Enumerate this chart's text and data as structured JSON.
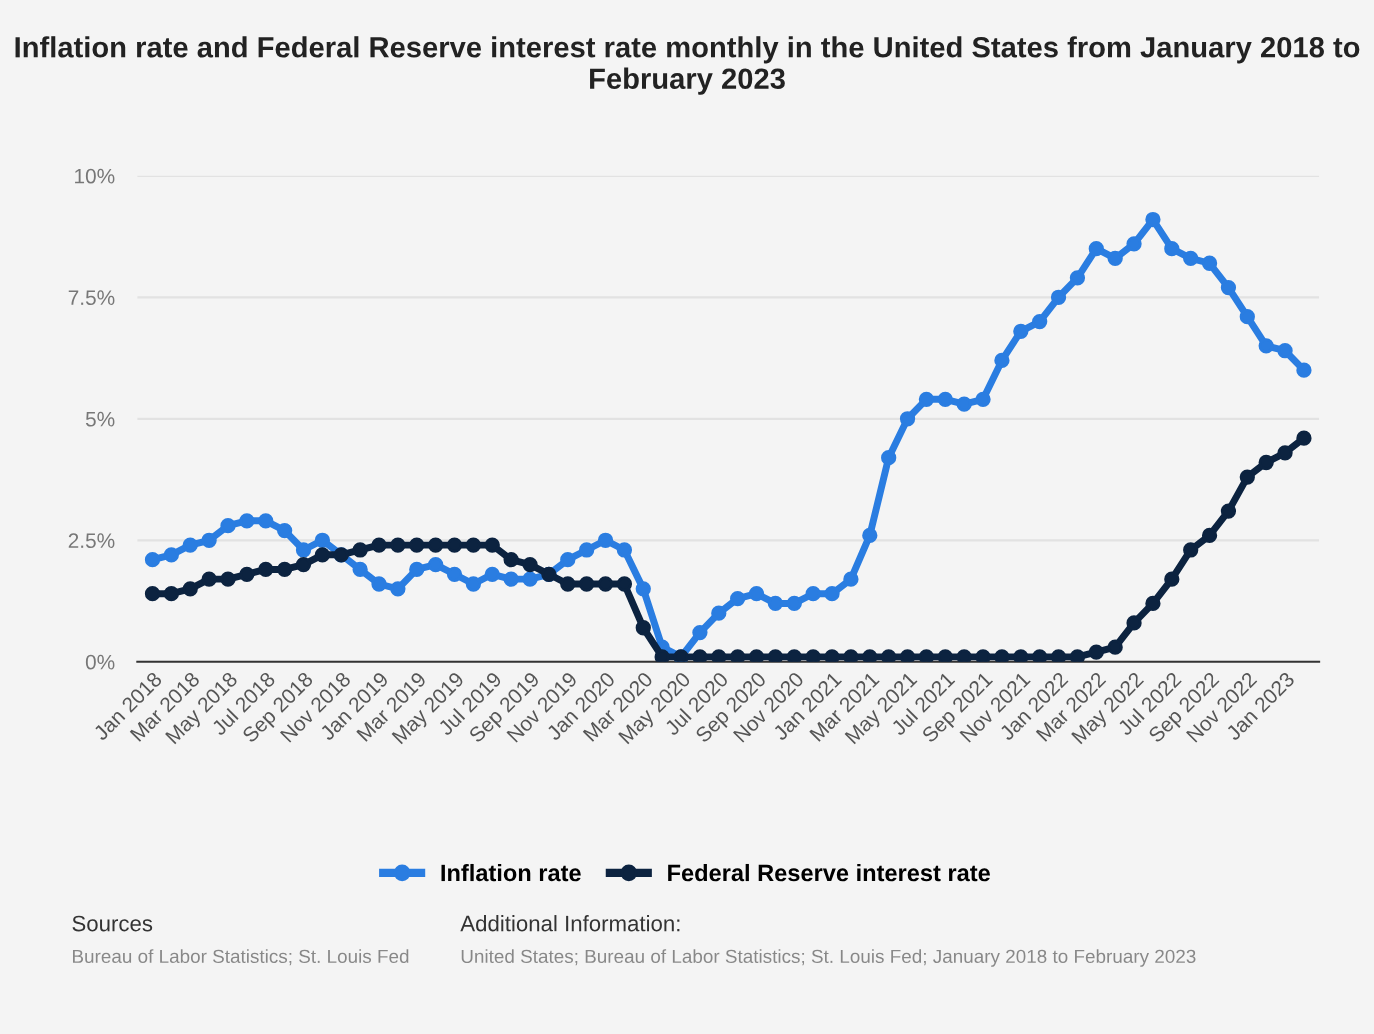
{
  "chart_data": {
    "type": "line",
    "title": "Inflation rate and Federal Reserve interest rate monthly in the United States from January 2018 to February 2023",
    "categories": [
      "Jan 2018",
      null,
      "Mar 2018",
      null,
      "May 2018",
      null,
      "Jul 2018",
      null,
      "Sep 2018",
      null,
      "Nov 2018",
      null,
      "Jan 2019",
      null,
      "Mar 2019",
      null,
      "May 2019",
      null,
      "Jul 2019",
      null,
      "Sep 2019",
      null,
      "Nov 2019",
      null,
      "Jan 2020",
      null,
      "Mar 2020",
      null,
      "May 2020",
      null,
      "Jul 2020",
      null,
      "Sep 2020",
      null,
      "Nov 2020",
      null,
      "Jan 2021",
      null,
      "Mar 2021",
      null,
      "May 2021",
      null,
      "Jul 2021",
      null,
      "Sep 2021",
      null,
      "Nov 2021",
      null,
      "Jan 2022",
      null,
      "Mar 2022",
      null,
      "May 2022",
      null,
      "Jul 2022",
      null,
      "Sep 2022",
      null,
      "Nov 2022",
      null,
      "Jan 2023",
      null
    ],
    "series": [
      {
        "name": "Inflation rate",
        "color": "#2a7de1",
        "values": [
          2.1,
          2.2,
          2.4,
          2.5,
          2.8,
          2.9,
          2.9,
          2.7,
          2.3,
          2.5,
          2.2,
          1.9,
          1.6,
          1.5,
          1.9,
          2.0,
          1.8,
          1.6,
          1.8,
          1.7,
          1.7,
          1.8,
          2.1,
          2.3,
          2.5,
          2.3,
          1.5,
          0.3,
          0.1,
          0.6,
          1.0,
          1.3,
          1.4,
          1.2,
          1.2,
          1.4,
          1.4,
          1.7,
          2.6,
          4.2,
          5.0,
          5.4,
          5.4,
          5.3,
          5.4,
          6.2,
          6.8,
          7.0,
          7.5,
          7.9,
          8.5,
          8.3,
          8.6,
          9.1,
          8.5,
          8.3,
          8.2,
          7.7,
          7.1,
          6.5,
          6.4,
          6.0
        ]
      },
      {
        "name": "Federal Reserve interest rate",
        "color": "#0c2340",
        "values": [
          1.4,
          1.4,
          1.5,
          1.7,
          1.7,
          1.8,
          1.9,
          1.9,
          2.0,
          2.2,
          2.2,
          2.3,
          2.4,
          2.4,
          2.4,
          2.4,
          2.4,
          2.4,
          2.4,
          2.1,
          2.0,
          1.8,
          1.6,
          1.6,
          1.6,
          1.6,
          0.7,
          0.1,
          0.1,
          0.1,
          0.1,
          0.1,
          0.1,
          0.1,
          0.1,
          0.1,
          0.1,
          0.1,
          0.1,
          0.1,
          0.1,
          0.1,
          0.1,
          0.1,
          0.1,
          0.1,
          0.1,
          0.1,
          0.1,
          0.1,
          0.2,
          0.3,
          0.8,
          1.2,
          1.7,
          2.3,
          2.6,
          3.1,
          3.8,
          4.1,
          4.3,
          4.6
        ]
      }
    ],
    "ylim": [
      0,
      10
    ],
    "yticks": [
      {
        "value": 0,
        "label": "0%"
      },
      {
        "value": 2.5,
        "label": "2.5%"
      },
      {
        "value": 5,
        "label": "5%"
      },
      {
        "value": 7.5,
        "label": "7.5%"
      },
      {
        "value": 10,
        "label": "10%"
      }
    ],
    "grid": "y",
    "legend": "bottom",
    "marker": "circle",
    "line_style": "solid",
    "annotations": [
      "Sources",
      "Bureau of Labor Statistics; St. Louis Fed",
      "Additional Information:",
      "United States; Bureau of Labor Statistics; St. Louis Fed; January 2018 to February 2023"
    ]
  }
}
